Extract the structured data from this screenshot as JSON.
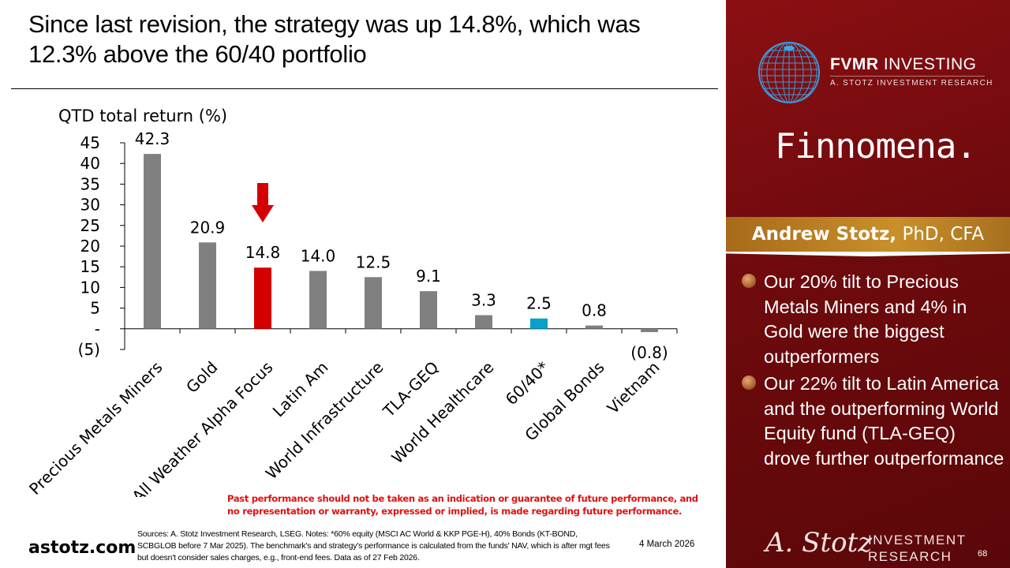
{
  "slide": {
    "title": "Since last revision, the strategy was up 14.8%, which was 12.3% above the 60/40 portfolio",
    "disclaimer": "Past performance should not be taken as an indication or guarantee of future performance, and no representation or warranty, expressed or implied, is made regarding future performance.",
    "website": "astotz.com",
    "sources": "Sources: A. Stotz Investment Research, LSEG. Notes: *60% equity (MSCI AC World & KKP PGE-H), 40% Bonds (KT-BOND, SCBGLOB before 7 Mar 2025). The benchmark's and strategy's performance is calculated from the funds' NAV, which is after mgt fees but doesn't consider sales charges, e.g., front-end fees. Data as of 27 Feb 2026.",
    "date": "4 March 2026",
    "page_number": "68"
  },
  "sidebar": {
    "logo_brand_bold": "FVMR",
    "logo_brand_rest": " INVESTING",
    "logo_subtitle": "A. STOTZ INVESTMENT RESEARCH",
    "partner_logo": "Finnomena.",
    "presenter_name": "Andrew Stotz,",
    "presenter_credentials": " PhD, CFA",
    "bullets": [
      "Our 20% tilt to Precious Metals Miners and 4% in Gold were the biggest outperformers",
      "Our 22% tilt to Latin America and the outperforming World Equity fund (TLA-GEQ) drove further outperformance"
    ],
    "signature": "A. Stotz",
    "footer_logo_line1": "INVESTMENT",
    "footer_logo_line2": "RESEARCH"
  },
  "chart_data": {
    "type": "bar",
    "title": "",
    "ylabel": "QTD total return (%)",
    "xlabel": "",
    "categories": [
      "Precious Metals Miners",
      "Gold",
      "All Weather Alpha Focus",
      "Latin Am",
      "World Infrastructure",
      "TLA-GEQ",
      "World Healthcare",
      "60/40*",
      "Global Bonds",
      "Vietnam"
    ],
    "values": [
      42.3,
      20.9,
      14.8,
      14.0,
      12.5,
      9.1,
      3.3,
      2.5,
      0.8,
      -0.8
    ],
    "data_labels": [
      "42.3",
      "20.9",
      "14.8",
      "14.0",
      "12.5",
      "9.1",
      "3.3",
      "2.5",
      "0.8",
      "(0.8)"
    ],
    "highlight": {
      "All Weather Alpha Focus": "strategy",
      "60/40*": "benchmark"
    },
    "colors": {
      "default": "#808080",
      "strategy": "#d40000",
      "benchmark": "#0aa0c8",
      "arrow": "#d40000"
    },
    "arrow_annotation_category": "All Weather Alpha Focus",
    "ylim": [
      -5,
      45
    ],
    "yticks": [
      -5,
      0,
      5,
      10,
      15,
      20,
      25,
      30,
      35,
      40,
      45
    ],
    "ytick_labels": [
      "(5)",
      "-",
      "5",
      "10",
      "15",
      "20",
      "25",
      "30",
      "35",
      "40",
      "45"
    ],
    "grid": false,
    "legend": "none"
  }
}
